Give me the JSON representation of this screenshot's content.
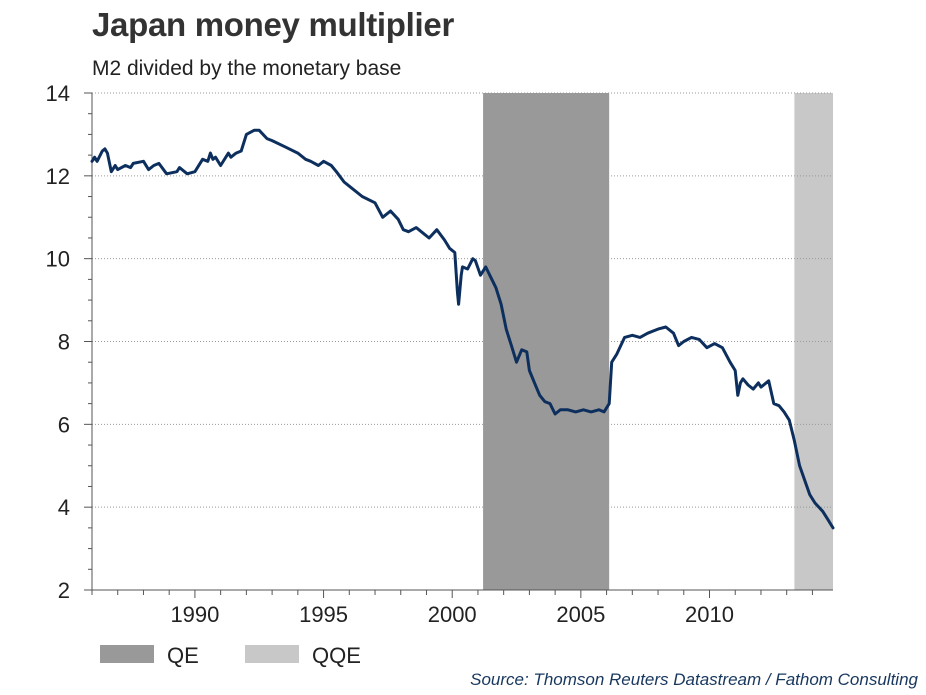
{
  "chart_data": {
    "type": "line",
    "title": "Japan money multiplier",
    "subtitle": "M2 divided by the monetary base",
    "source": "Source: Thomson Reuters Datastream / Fathom Consulting",
    "xlim": [
      1986.0,
      2014.8
    ],
    "ylim": [
      2,
      14
    ],
    "x_ticks": [
      1990,
      1995,
      2000,
      2005,
      2010
    ],
    "y_ticks": [
      2,
      4,
      6,
      8,
      10,
      12,
      14
    ],
    "grid": "horizontal dotted",
    "legend_position": "bottom-left",
    "shaded_periods": [
      {
        "name": "QE",
        "start": 2001.2,
        "end": 2006.1,
        "color": "#999999"
      },
      {
        "name": "QQE",
        "start": 2013.3,
        "end": 2014.8,
        "color": "#c8c8c8"
      }
    ],
    "line_color": "#0d2f5e",
    "series": [
      {
        "name": "",
        "x": [
          1986.0,
          1986.1,
          1986.2,
          1986.4,
          1986.5,
          1986.6,
          1986.75,
          1986.85,
          1986.9,
          1987.0,
          1987.3,
          1987.5,
          1987.6,
          1988.0,
          1988.2,
          1988.4,
          1988.6,
          1988.9,
          1989.3,
          1989.4,
          1989.7,
          1990.0,
          1990.3,
          1990.5,
          1990.6,
          1990.7,
          1990.8,
          1991.0,
          1991.3,
          1991.4,
          1991.6,
          1991.8,
          1992.0,
          1992.3,
          1992.5,
          1992.8,
          1993.0,
          1993.5,
          1994.0,
          1994.3,
          1994.5,
          1994.8,
          1995.0,
          1995.3,
          1995.5,
          1995.8,
          1996.0,
          1996.5,
          1997.0,
          1997.3,
          1997.6,
          1997.9,
          1998.1,
          1998.3,
          1998.6,
          1998.9,
          1999.1,
          1999.4,
          1999.7,
          1999.9,
          2000.0,
          2000.1,
          2000.2,
          2000.25,
          2000.35,
          2000.4,
          2000.6,
          2000.8,
          2000.9,
          2001.1,
          2001.3,
          2001.5,
          2001.7,
          2001.9,
          2002.1,
          2002.3,
          2002.5,
          2002.7,
          2002.9,
          2003.0,
          2003.2,
          2003.4,
          2003.6,
          2003.8,
          2004.0,
          2004.2,
          2004.5,
          2004.8,
          2005.1,
          2005.4,
          2005.7,
          2005.9,
          2006.0,
          2006.1,
          2006.2,
          2006.4,
          2006.7,
          2007.0,
          2007.3,
          2007.6,
          2008.0,
          2008.3,
          2008.6,
          2008.8,
          2009.0,
          2009.3,
          2009.6,
          2009.9,
          2010.2,
          2010.5,
          2010.8,
          2011.0,
          2011.1,
          2011.2,
          2011.3,
          2011.5,
          2011.7,
          2011.9,
          2012.0,
          2012.3,
          2012.5,
          2012.7,
          2012.9,
          2013.1,
          2013.3,
          2013.5,
          2013.7,
          2013.9,
          2014.1,
          2014.4,
          2014.6,
          2014.8
        ],
        "values": [
          12.35,
          12.45,
          12.35,
          12.6,
          12.65,
          12.55,
          12.1,
          12.2,
          12.25,
          12.15,
          12.25,
          12.2,
          12.3,
          12.35,
          12.15,
          12.25,
          12.3,
          12.05,
          12.1,
          12.2,
          12.05,
          12.1,
          12.4,
          12.35,
          12.55,
          12.4,
          12.45,
          12.25,
          12.55,
          12.45,
          12.55,
          12.6,
          13.0,
          13.1,
          13.1,
          12.9,
          12.85,
          12.7,
          12.55,
          12.4,
          12.35,
          12.25,
          12.35,
          12.25,
          12.1,
          11.85,
          11.75,
          11.5,
          11.35,
          11.0,
          11.15,
          10.95,
          10.7,
          10.65,
          10.75,
          10.6,
          10.5,
          10.7,
          10.45,
          10.25,
          10.2,
          10.15,
          9.2,
          8.9,
          9.6,
          9.8,
          9.75,
          10.0,
          9.95,
          9.6,
          9.8,
          9.55,
          9.3,
          8.9,
          8.3,
          7.9,
          7.5,
          7.8,
          7.75,
          7.3,
          7.0,
          6.7,
          6.55,
          6.5,
          6.25,
          6.35,
          6.35,
          6.3,
          6.35,
          6.3,
          6.35,
          6.3,
          6.4,
          6.5,
          7.5,
          7.7,
          8.1,
          8.15,
          8.1,
          8.2,
          8.3,
          8.35,
          8.2,
          7.9,
          8.0,
          8.1,
          8.05,
          7.85,
          7.95,
          7.85,
          7.5,
          7.3,
          6.7,
          7.0,
          7.1,
          6.95,
          6.85,
          7.0,
          6.9,
          7.05,
          6.5,
          6.45,
          6.3,
          6.1,
          5.6,
          5.0,
          4.65,
          4.3,
          4.1,
          3.9,
          3.7,
          3.5
        ]
      }
    ]
  }
}
